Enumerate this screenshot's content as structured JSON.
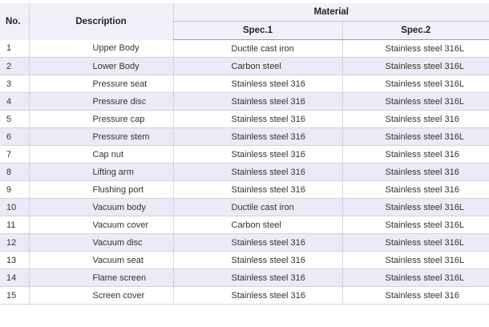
{
  "table": {
    "headers": {
      "no": "No.",
      "description": "Description",
      "material": "Material",
      "spec1": "Spec.1",
      "spec2": "Spec.2"
    },
    "rows": [
      {
        "no": "1",
        "description": "Upper Body",
        "spec1": "Ductile cast iron",
        "spec2": "Stainless steel 316L"
      },
      {
        "no": "2",
        "description": "Lower Body",
        "spec1": "Carbon steel",
        "spec2": "Stainless steel 316L"
      },
      {
        "no": "3",
        "description": "Pressure seat",
        "spec1": "Stainless steel 316",
        "spec2": "Stainless steel 316L"
      },
      {
        "no": "4",
        "description": "Pressure disc",
        "spec1": "Stainless steel 316",
        "spec2": "Stainless steel 316L"
      },
      {
        "no": "5",
        "description": "Pressure cap",
        "spec1": "Stainless steel 316",
        "spec2": "Stainless steel 316"
      },
      {
        "no": "6",
        "description": "Pressure stem",
        "spec1": "Stainless steel 316",
        "spec2": "Stainless steel 316L"
      },
      {
        "no": "7",
        "description": "Cap nut",
        "spec1": "Stainless steel 316",
        "spec2": "Stainless steel 316"
      },
      {
        "no": "8",
        "description": "Lifting arm",
        "spec1": "Stainless steel 316",
        "spec2": "Stainless steel 316"
      },
      {
        "no": "9",
        "description": "Flushing port",
        "spec1": "Stainless steel 316",
        "spec2": "Stainless steel 316"
      },
      {
        "no": "10",
        "description": "Vacuum body",
        "spec1": "Ductile cast iron",
        "spec2": "Stainless steel 316L"
      },
      {
        "no": "11",
        "description": "Vacuum cover",
        "spec1": "Carbon steel",
        "spec2": "Stainless steel 316L"
      },
      {
        "no": "12",
        "description": "Vacuum disc",
        "spec1": "Stainless steel 316",
        "spec2": "Stainless steel 316L"
      },
      {
        "no": "13",
        "description": "Vacuum seat",
        "spec1": "Stainless steel 316",
        "spec2": "Stainless steel 316L"
      },
      {
        "no": "14",
        "description": "Flame screen",
        "spec1": "Stainless steel 316",
        "spec2": "Stainless steel 316L"
      },
      {
        "no": "15",
        "description": "Screen cover",
        "spec1": "Stainless steel 316",
        "spec2": "Stainless steel 316"
      }
    ]
  },
  "colors": {
    "header_bg": "#f0f1f8",
    "alt_row_bg": "#eaebf6"
  }
}
